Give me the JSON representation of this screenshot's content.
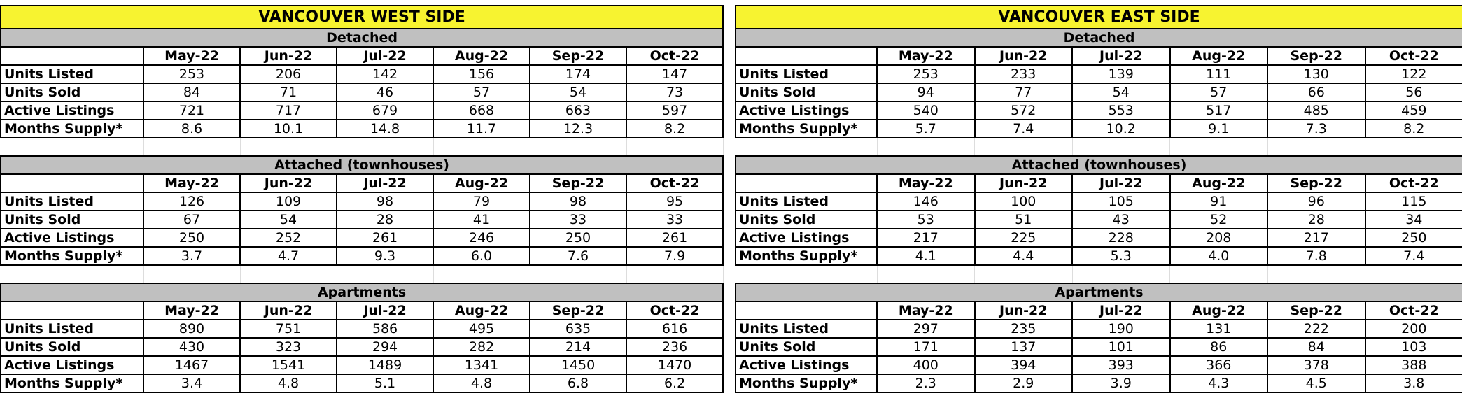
{
  "panels": [
    {
      "title": "VANCOUVER WEST SIDE",
      "sections": [
        {
          "title": "Detached",
          "months": [
            "May-22",
            "Jun-22",
            "Jul-22",
            "Aug-22",
            "Sep-22",
            "Oct-22"
          ],
          "rows": [
            {
              "label": "Units Listed",
              "values": [
                "253",
                "206",
                "142",
                "156",
                "174",
                "147"
              ]
            },
            {
              "label": "Units Sold",
              "values": [
                "84",
                "71",
                "46",
                "57",
                "54",
                "73"
              ]
            },
            {
              "label": "Active Listings",
              "values": [
                "721",
                "717",
                "679",
                "668",
                "663",
                "597"
              ]
            },
            {
              "label": "Months Supply*",
              "values": [
                "8.6",
                "10.1",
                "14.8",
                "11.7",
                "12.3",
                "8.2"
              ]
            }
          ]
        },
        {
          "title": "Attached (townhouses)",
          "months": [
            "May-22",
            "Jun-22",
            "Jul-22",
            "Aug-22",
            "Sep-22",
            "Oct-22"
          ],
          "rows": [
            {
              "label": "Units Listed",
              "values": [
                "126",
                "109",
                "98",
                "79",
                "98",
                "95"
              ]
            },
            {
              "label": "Units Sold",
              "values": [
                "67",
                "54",
                "28",
                "41",
                "33",
                "33"
              ]
            },
            {
              "label": "Active Listings",
              "values": [
                "250",
                "252",
                "261",
                "246",
                "250",
                "261"
              ]
            },
            {
              "label": "Months Supply*",
              "values": [
                "3.7",
                "4.7",
                "9.3",
                "6.0",
                "7.6",
                "7.9"
              ]
            }
          ]
        },
        {
          "title": "Apartments",
          "months": [
            "May-22",
            "Jun-22",
            "Jul-22",
            "Aug-22",
            "Sep-22",
            "Oct-22"
          ],
          "rows": [
            {
              "label": "Units Listed",
              "values": [
                "890",
                "751",
                "586",
                "495",
                "635",
                "616"
              ]
            },
            {
              "label": "Units Sold",
              "values": [
                "430",
                "323",
                "294",
                "282",
                "214",
                "236"
              ]
            },
            {
              "label": "Active Listings",
              "values": [
                "1467",
                "1541",
                "1489",
                "1341",
                "1450",
                "1470"
              ]
            },
            {
              "label": "Months Supply*",
              "values": [
                "3.4",
                "4.8",
                "5.1",
                "4.8",
                "6.8",
                "6.2"
              ]
            }
          ]
        }
      ]
    },
    {
      "title": "VANCOUVER EAST SIDE",
      "sections": [
        {
          "title": "Detached",
          "months": [
            "May-22",
            "Jun-22",
            "Jul-22",
            "Aug-22",
            "Sep-22",
            "Oct-22"
          ],
          "rows": [
            {
              "label": "Units Listed",
              "values": [
                "253",
                "233",
                "139",
                "111",
                "130",
                "122"
              ]
            },
            {
              "label": "Units Sold",
              "values": [
                "94",
                "77",
                "54",
                "57",
                "66",
                "56"
              ]
            },
            {
              "label": "Active Listings",
              "values": [
                "540",
                "572",
                "553",
                "517",
                "485",
                "459"
              ]
            },
            {
              "label": "Months Supply*",
              "values": [
                "5.7",
                "7.4",
                "10.2",
                "9.1",
                "7.3",
                "8.2"
              ]
            }
          ]
        },
        {
          "title": "Attached (townhouses)",
          "months": [
            "May-22",
            "Jun-22",
            "Jul-22",
            "Aug-22",
            "Sep-22",
            "Oct-22"
          ],
          "rows": [
            {
              "label": "Units Listed",
              "values": [
                "146",
                "100",
                "105",
                "91",
                "96",
                "115"
              ]
            },
            {
              "label": "Units Sold",
              "values": [
                "53",
                "51",
                "43",
                "52",
                "28",
                "34"
              ]
            },
            {
              "label": "Active Listings",
              "values": [
                "217",
                "225",
                "228",
                "208",
                "217",
                "250"
              ]
            },
            {
              "label": "Months Supply*",
              "values": [
                "4.1",
                "4.4",
                "5.3",
                "4.0",
                "7.8",
                "7.4"
              ]
            }
          ]
        },
        {
          "title": "Apartments",
          "months": [
            "May-22",
            "Jun-22",
            "Jul-22",
            "Aug-22",
            "Sep-22",
            "Oct-22"
          ],
          "rows": [
            {
              "label": "Units Listed",
              "values": [
                "297",
                "235",
                "190",
                "131",
                "222",
                "200"
              ]
            },
            {
              "label": "Units Sold",
              "values": [
                "171",
                "137",
                "101",
                "86",
                "84",
                "103"
              ]
            },
            {
              "label": "Active Listings",
              "values": [
                "400",
                "394",
                "393",
                "366",
                "378",
                "388"
              ]
            },
            {
              "label": "Months Supply*",
              "values": [
                "2.3",
                "2.9",
                "3.9",
                "4.3",
                "4.5",
                "3.8"
              ]
            }
          ]
        }
      ]
    }
  ]
}
